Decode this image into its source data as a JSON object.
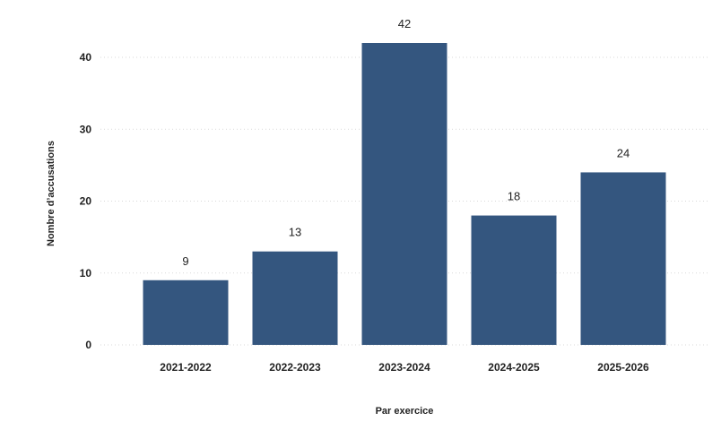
{
  "chart_data": {
    "type": "bar",
    "categories": [
      "2021-2022",
      "2022-2023",
      "2023-2024",
      "2024-2025",
      "2025-2026"
    ],
    "values": [
      9,
      13,
      42,
      18,
      24
    ],
    "title": "",
    "xlabel": "Par exercice",
    "ylabel": "Nombre d’accusations",
    "ylim": [
      0,
      42
    ],
    "yticks": [
      0,
      10,
      20,
      30,
      40
    ],
    "grid": true,
    "bar_color": "#34567f"
  }
}
